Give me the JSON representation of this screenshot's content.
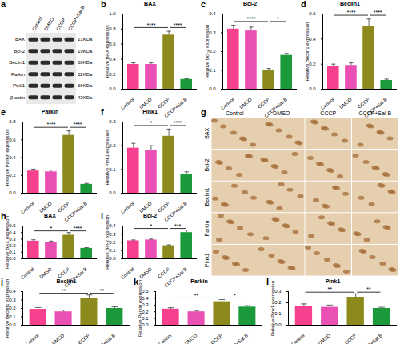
{
  "chart_data": [
    {
      "panel": "b",
      "type": "bar",
      "title": "BAX",
      "y_label": "Relative BAX expression",
      "categories": [
        "Control",
        "DMSO",
        "CCCP",
        "CCCP+Sal B"
      ],
      "values": [
        0.33,
        0.33,
        0.72,
        0.13
      ],
      "errors": [
        0.02,
        0.02,
        0.05,
        0.01
      ],
      "colors": [
        "#f7418f",
        "#ea4fb4",
        "#8c8a1c",
        "#1a9a3b"
      ],
      "ylim": [
        0,
        1
      ],
      "yticks": [
        {
          "value": 0,
          "label": "0.0"
        },
        {
          "value": 0.2,
          "label": "0.2"
        },
        {
          "value": 0.4,
          "label": "0.4"
        },
        {
          "value": 0.6,
          "label": "0.6"
        },
        {
          "value": 0.8,
          "label": "0.8"
        },
        {
          "value": 1,
          "label": "1.0"
        }
      ],
      "comparisons": [
        {
          "from": "Control",
          "to": "CCCP",
          "label": "****"
        },
        {
          "from": "CCCP",
          "to": "CCCP+Sal B",
          "label": "****"
        }
      ]
    },
    {
      "panel": "c",
      "type": "bar",
      "title": "Bcl-2",
      "y_label": "Relative Bcl-2 expression",
      "categories": [
        "Control",
        "DMSO",
        "CCCP",
        "CCCP+Sal B"
      ],
      "values": [
        0.32,
        0.31,
        0.1,
        0.18
      ],
      "errors": [
        0.02,
        0.02,
        0.01,
        0.01
      ],
      "colors": [
        "#f7418f",
        "#ea4fb4",
        "#8c8a1c",
        "#1a9a3b"
      ],
      "ylim": [
        0,
        0.4
      ],
      "yticks": [
        {
          "value": 0,
          "label": "0.0"
        },
        {
          "value": 0.1,
          "label": "0.1"
        },
        {
          "value": 0.2,
          "label": "0.2"
        },
        {
          "value": 0.3,
          "label": "0.3"
        },
        {
          "value": 0.4,
          "label": "0.4"
        }
      ],
      "comparisons": [
        {
          "from": "Control",
          "to": "CCCP",
          "label": "****"
        },
        {
          "from": "CCCP",
          "to": "CCCP+Sal B",
          "label": "*"
        }
      ]
    },
    {
      "panel": "d",
      "type": "bar",
      "title": "Beclin1",
      "y_label": "Relative Beclin1 expression",
      "categories": [
        "Control",
        "DMSO",
        "CCCP",
        "CCCP+Sal B"
      ],
      "values": [
        0.18,
        0.19,
        0.5,
        0.07
      ],
      "errors": [
        0.02,
        0.02,
        0.06,
        0.01
      ],
      "colors": [
        "#f7418f",
        "#ea4fb4",
        "#8c8a1c",
        "#1a9a3b"
      ],
      "ylim": [
        0,
        0.6
      ],
      "yticks": [
        {
          "value": 0,
          "label": "0.0"
        },
        {
          "value": 0.2,
          "label": "0.2"
        },
        {
          "value": 0.4,
          "label": "0.4"
        },
        {
          "value": 0.6,
          "label": "0.6"
        }
      ],
      "comparisons": [
        {
          "from": "Control",
          "to": "CCCP",
          "label": "****"
        },
        {
          "from": "CCCP",
          "to": "CCCP+Sal B",
          "label": "****"
        }
      ]
    },
    {
      "panel": "e",
      "type": "bar",
      "title": "Parkin",
      "y_label": "Relative Parkin expression",
      "categories": [
        "Control",
        "DMSO",
        "CCCP",
        "CCCP+Sal B"
      ],
      "values": [
        0.25,
        0.24,
        0.65,
        0.1
      ],
      "errors": [
        0.02,
        0.02,
        0.05,
        0.01
      ],
      "colors": [
        "#f7418f",
        "#ea4fb4",
        "#8c8a1c",
        "#1a9a3b"
      ],
      "ylim": [
        0,
        0.8
      ],
      "yticks": [
        {
          "value": 0,
          "label": "0.0"
        },
        {
          "value": 0.2,
          "label": "0.2"
        },
        {
          "value": 0.4,
          "label": "0.4"
        },
        {
          "value": 0.6,
          "label": "0.6"
        },
        {
          "value": 0.8,
          "label": "0.8"
        }
      ],
      "comparisons": [
        {
          "from": "Control",
          "to": "CCCP",
          "label": "****"
        },
        {
          "from": "CCCP",
          "to": "CCCP+Sal B",
          "label": "****"
        }
      ]
    },
    {
      "panel": "f",
      "type": "bar",
      "title": "Pink1",
      "y_label": "Relative Pink1 expression",
      "categories": [
        "Control",
        "DMSO",
        "CCCP",
        "CCCP+Sal B"
      ],
      "values": [
        0.19,
        0.18,
        0.24,
        0.08
      ],
      "errors": [
        0.02,
        0.02,
        0.03,
        0.01
      ],
      "colors": [
        "#f7418f",
        "#ea4fb4",
        "#8c8a1c",
        "#1a9a3b"
      ],
      "ylim": [
        0,
        0.3
      ],
      "yticks": [
        {
          "value": 0,
          "label": "0.0"
        },
        {
          "value": 0.1,
          "label": "0.1"
        },
        {
          "value": 0.2,
          "label": "0.2"
        },
        {
          "value": 0.3,
          "label": "0.3"
        }
      ],
      "comparisons": [
        {
          "from": "Control",
          "to": "CCCP",
          "label": "*"
        },
        {
          "from": "CCCP",
          "to": "CCCP+Sal B",
          "label": "****"
        }
      ]
    },
    {
      "panel": "h",
      "type": "bar",
      "title": "BAX",
      "y_label": "Relative BAX expression",
      "categories": [
        "Control",
        "DMSO",
        "CCCP",
        "CCCP+Sal B"
      ],
      "values": [
        0.27,
        0.25,
        0.36,
        0.16
      ],
      "errors": [
        0.02,
        0.02,
        0.04,
        0.01
      ],
      "colors": [
        "#f7418f",
        "#ea4fb4",
        "#8c8a1c",
        "#1a9a3b"
      ],
      "ylim": [
        0,
        0.5
      ],
      "yticks": [
        {
          "value": 0,
          "label": "0.0"
        },
        {
          "value": 0.1,
          "label": "0.1"
        },
        {
          "value": 0.2,
          "label": "0.2"
        },
        {
          "value": 0.3,
          "label": "0.3"
        },
        {
          "value": 0.4,
          "label": "0.4"
        },
        {
          "value": 0.5,
          "label": "0.5"
        }
      ],
      "comparisons": [
        {
          "from": "Control",
          "to": "CCCP",
          "label": "*"
        },
        {
          "from": "CCCP",
          "to": "CCCP+Sal B",
          "label": "****"
        }
      ]
    },
    {
      "panel": "i",
      "type": "bar",
      "title": "Bcl-2",
      "y_label": "Relative Bcl-2 expression",
      "categories": [
        "Control",
        "DMSO",
        "CCCP",
        "CCCP+Sal B"
      ],
      "values": [
        0.22,
        0.23,
        0.16,
        0.32
      ],
      "errors": [
        0.01,
        0.01,
        0.01,
        0.03
      ],
      "colors": [
        "#f7418f",
        "#ea4fb4",
        "#8c8a1c",
        "#1a9a3b"
      ],
      "ylim": [
        0,
        0.4
      ],
      "yticks": [
        {
          "value": 0,
          "label": "0.0"
        },
        {
          "value": 0.1,
          "label": "0.1"
        },
        {
          "value": 0.2,
          "label": "0.2"
        },
        {
          "value": 0.3,
          "label": "0.3"
        },
        {
          "value": 0.4,
          "label": "0.4"
        }
      ],
      "comparisons": [
        {
          "from": "Control",
          "to": "CCCP",
          "label": "*"
        },
        {
          "from": "CCCP",
          "to": "CCCP+Sal B",
          "label": "***"
        }
      ]
    },
    {
      "panel": "j",
      "type": "bar",
      "title": "Beclin1",
      "y_label": "Relative Beclin1 expression",
      "categories": [
        "Control",
        "DMSO",
        "CCCP",
        "CCCP+Sal B"
      ],
      "values": [
        0.19,
        0.16,
        0.32,
        0.2
      ],
      "errors": [
        0.02,
        0.02,
        0.04,
        0.02
      ],
      "colors": [
        "#f7418f",
        "#ea4fb4",
        "#8c8a1c",
        "#1a9a3b"
      ],
      "ylim": [
        0,
        0.4
      ],
      "yticks": [
        {
          "value": 0,
          "label": "0.0"
        },
        {
          "value": 0.1,
          "label": "0.1"
        },
        {
          "value": 0.2,
          "label": "0.2"
        },
        {
          "value": 0.3,
          "label": "0.3"
        },
        {
          "value": 0.4,
          "label": "0.4"
        }
      ],
      "comparisons": [
        {
          "from": "Control",
          "to": "CCCP",
          "label": "**"
        },
        {
          "from": "CCCP",
          "to": "CCCP+Sal B",
          "label": "**"
        }
      ]
    },
    {
      "panel": "k",
      "type": "bar",
      "title": "Parkin",
      "y_label": "Relative Parkin expression",
      "categories": [
        "Control",
        "DMSO",
        "CCCP",
        "CCCP+Sal B"
      ],
      "values": [
        0.24,
        0.2,
        0.35,
        0.27
      ],
      "errors": [
        0.02,
        0.02,
        0.03,
        0.02
      ],
      "colors": [
        "#f7418f",
        "#ea4fb4",
        "#8c8a1c",
        "#1a9a3b"
      ],
      "ylim": [
        0,
        0.5
      ],
      "yticks": [
        {
          "value": 0,
          "label": "0.0"
        },
        {
          "value": 0.1,
          "label": "0.1"
        },
        {
          "value": 0.2,
          "label": "0.2"
        },
        {
          "value": 0.3,
          "label": "0.3"
        },
        {
          "value": 0.4,
          "label": "0.4"
        },
        {
          "value": 0.5,
          "label": "0.5"
        }
      ],
      "comparisons": [
        {
          "from": "Control",
          "to": "CCCP",
          "label": "**"
        },
        {
          "from": "CCCP",
          "to": "CCCP+Sal B",
          "label": "*"
        }
      ]
    },
    {
      "panel": "l",
      "type": "bar",
      "title": "Pink1",
      "y_label": "Relative Pink1 expression",
      "categories": [
        "Control",
        "DMSO",
        "CCCP",
        "CCCP+Sal B"
      ],
      "values": [
        0.17,
        0.16,
        0.25,
        0.15
      ],
      "errors": [
        0.02,
        0.02,
        0.03,
        0.01
      ],
      "colors": [
        "#f7418f",
        "#ea4fb4",
        "#8c8a1c",
        "#1a9a3b"
      ],
      "ylim": [
        0,
        0.3
      ],
      "yticks": [
        {
          "value": 0,
          "label": "0.0"
        },
        {
          "value": 0.1,
          "label": "0.1"
        },
        {
          "value": 0.2,
          "label": "0.2"
        },
        {
          "value": 0.3,
          "label": "0.3"
        }
      ],
      "comparisons": [
        {
          "from": "Control",
          "to": "CCCP",
          "label": "**"
        },
        {
          "from": "CCCP",
          "to": "CCCP+Sal B",
          "label": "**"
        }
      ]
    }
  ],
  "blot": {
    "panel": "a",
    "lanes": [
      "Control",
      "DMSO",
      "CCCP",
      "CCCP+Sal B"
    ],
    "proteins": [
      {
        "name": "BAX",
        "size": "21KDa"
      },
      {
        "name": "Bcl-2",
        "size": "19KDa"
      },
      {
        "name": "Beclin1",
        "size": "50KDa"
      },
      {
        "name": "Parkin",
        "size": "52KDa"
      },
      {
        "name": "Pink1",
        "size": "66KDa"
      },
      {
        "name": "β-actin",
        "size": "43KDa"
      }
    ]
  },
  "micrographs": {
    "panel": "g",
    "columns": [
      "Control",
      "DMSO",
      "CCCP",
      "CCCP+Sal B"
    ],
    "rows": [
      "BAX",
      "Bcl-2",
      "Beclin1",
      "Parkin",
      "Pink1"
    ]
  }
}
